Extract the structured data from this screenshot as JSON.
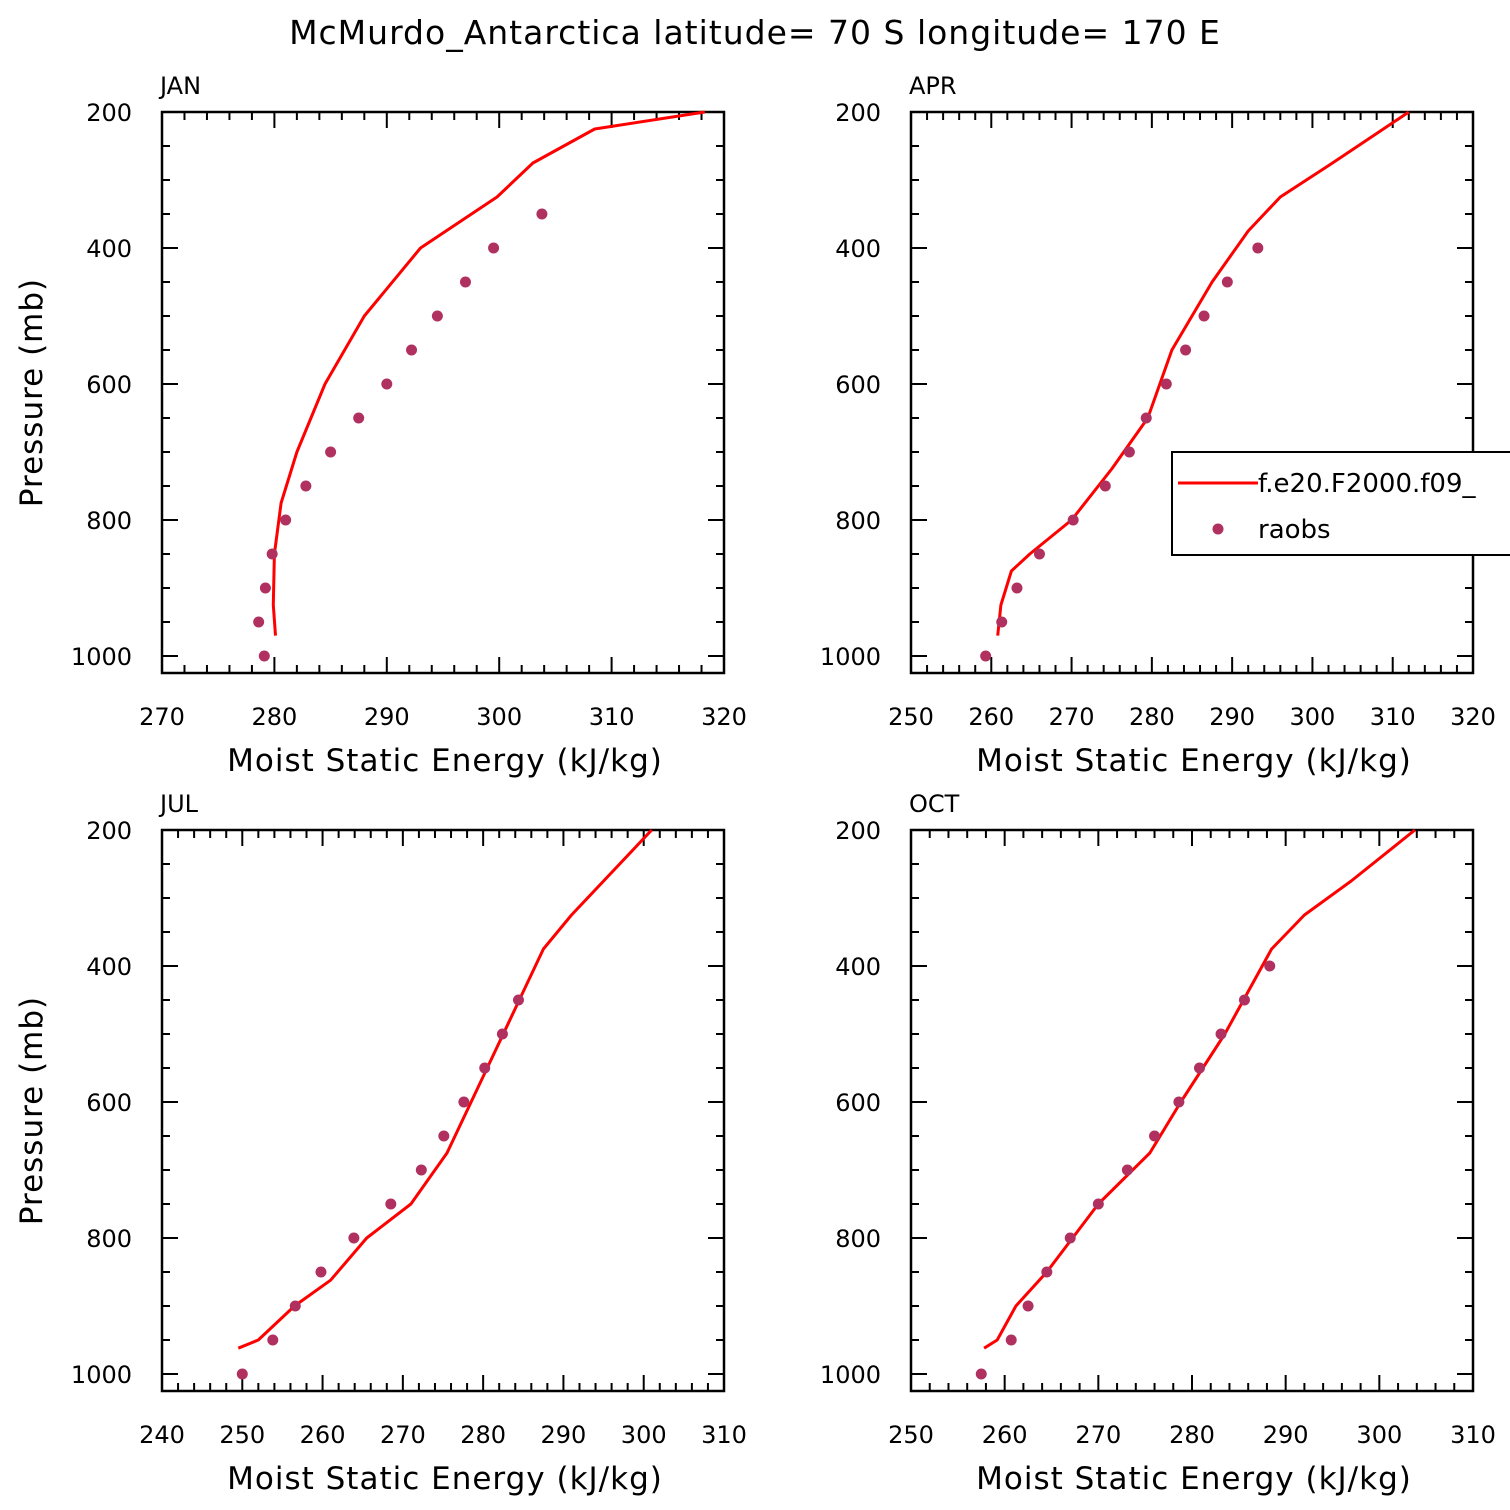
{
  "title": "McMurdo_Antarctica  latitude= 70 S longitude= 170 E",
  "colors": {
    "model_line": "#ff0000",
    "obs_marker": "#b03060",
    "axes": "#000000"
  },
  "legend": {
    "placement": "right-middle of APR panel",
    "entries": [
      {
        "label": "f.e20.F2000.f09_",
        "kind": "line"
      },
      {
        "label": "raobs",
        "kind": "marker"
      }
    ]
  },
  "chart_data": [
    {
      "type": "line",
      "panel": "JAN",
      "xlabel": "Moist Static Energy (kJ/kg)",
      "ylabel": "Pressure (mb)",
      "xlim": [
        270,
        320
      ],
      "ylim": [
        1025,
        200
      ],
      "y_inverted": true,
      "xticks": [
        270,
        280,
        290,
        300,
        310,
        320
      ],
      "yticks": [
        200,
        400,
        600,
        800,
        1000
      ],
      "series": [
        {
          "name": "f.e20.F2000.f09_",
          "style": "line",
          "x": [
            280.1,
            279.9,
            280.0,
            280.6,
            282.0,
            284.5,
            288.0,
            293.0,
            299.8,
            303.0,
            308.5,
            318.3
          ],
          "y": [
            970,
            925,
            850,
            775,
            700,
            600,
            500,
            400,
            325,
            275,
            225,
            200
          ]
        },
        {
          "name": "raobs",
          "style": "marker",
          "x": [
            279.1,
            278.6,
            279.2,
            279.8,
            281.0,
            282.8,
            285.0,
            287.5,
            290.0,
            292.2,
            294.5,
            297.0,
            299.5,
            303.8
          ],
          "y": [
            1000,
            950,
            900,
            850,
            800,
            750,
            700,
            650,
            600,
            550,
            500,
            450,
            400,
            350
          ]
        }
      ]
    },
    {
      "type": "line",
      "panel": "APR",
      "xlabel": "Moist Static Energy (kJ/kg)",
      "ylabel": "",
      "xlim": [
        250,
        320
      ],
      "ylim": [
        1025,
        200
      ],
      "y_inverted": true,
      "xticks": [
        250,
        260,
        270,
        280,
        290,
        300,
        310,
        320
      ],
      "yticks": [
        200,
        400,
        600,
        800,
        1000
      ],
      "series": [
        {
          "name": "f.e20.F2000.f09_",
          "style": "line",
          "x": [
            260.8,
            261.2,
            262.5,
            264.8,
            270.0,
            275.0,
            279.5,
            282.5,
            287.5,
            292.0,
            296.0,
            302.5,
            312.0
          ],
          "y": [
            970,
            925,
            875,
            850,
            800,
            725,
            650,
            550,
            450,
            375,
            325,
            275,
            200
          ]
        },
        {
          "name": "raobs",
          "style": "marker",
          "x": [
            259.3,
            261.3,
            263.2,
            266.0,
            270.2,
            274.2,
            277.2,
            279.3,
            281.8,
            284.2,
            286.5,
            289.4,
            293.2
          ],
          "y": [
            1000,
            950,
            900,
            850,
            800,
            750,
            700,
            650,
            600,
            550,
            500,
            450,
            400
          ]
        }
      ]
    },
    {
      "type": "line",
      "panel": "JUL",
      "xlabel": "Moist Static Energy (kJ/kg)",
      "ylabel": "Pressure (mb)",
      "xlim": [
        240,
        310
      ],
      "ylim": [
        1025,
        200
      ],
      "y_inverted": true,
      "xticks": [
        240,
        250,
        260,
        270,
        280,
        290,
        300,
        310
      ],
      "yticks": [
        200,
        400,
        600,
        800,
        1000
      ],
      "series": [
        {
          "name": "f.e20.F2000.f09_",
          "style": "line",
          "x": [
            249.5,
            252.0,
            256.5,
            261.0,
            265.5,
            271.0,
            275.5,
            280.5,
            284.5,
            287.5,
            291.0,
            295.0,
            301.0
          ],
          "y": [
            962,
            950,
            900,
            862,
            800,
            750,
            675,
            550,
            450,
            375,
            325,
            275,
            200
          ]
        },
        {
          "name": "raobs",
          "style": "marker",
          "x": [
            250.0,
            253.8,
            256.6,
            259.8,
            263.9,
            268.5,
            272.3,
            275.1,
            277.6,
            280.2,
            282.4,
            284.4
          ],
          "y": [
            1000,
            950,
            900,
            850,
            800,
            750,
            700,
            650,
            600,
            550,
            500,
            450
          ]
        }
      ]
    },
    {
      "type": "line",
      "panel": "OCT",
      "xlabel": "Moist Static Energy (kJ/kg)",
      "ylabel": "",
      "xlim": [
        250,
        310
      ],
      "ylim": [
        1025,
        200
      ],
      "y_inverted": true,
      "xticks": [
        250,
        260,
        270,
        280,
        290,
        300,
        310
      ],
      "yticks": [
        200,
        400,
        600,
        800,
        1000
      ],
      "series": [
        {
          "name": "f.e20.F2000.f09_",
          "style": "line",
          "x": [
            257.8,
            259.2,
            261.2,
            264.5,
            270.0,
            275.5,
            278.8,
            283.5,
            288.5,
            292.0,
            297.0,
            303.8
          ],
          "y": [
            962,
            950,
            900,
            850,
            750,
            675,
            600,
            500,
            375,
            325,
            275,
            200
          ]
        },
        {
          "name": "raobs",
          "style": "marker",
          "x": [
            257.5,
            260.7,
            262.5,
            264.5,
            267.0,
            270.0,
            273.1,
            276.0,
            278.6,
            280.8,
            283.1,
            285.6,
            288.3
          ],
          "y": [
            1000,
            950,
            900,
            850,
            800,
            750,
            700,
            650,
            600,
            550,
            500,
            450,
            400
          ]
        }
      ]
    }
  ]
}
